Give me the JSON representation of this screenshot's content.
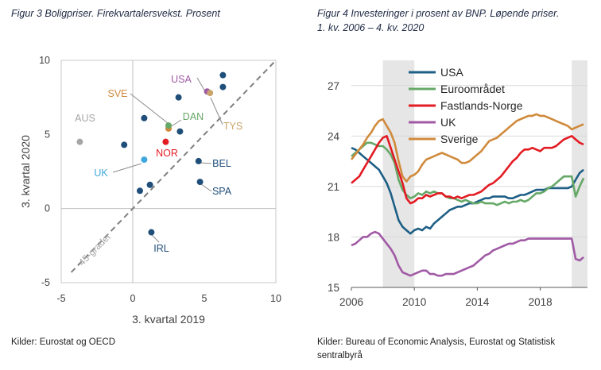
{
  "figure3": {
    "title": "Figur 3 Boligpriser. Firekvartalersvekst. Prosent",
    "source": "Kilder: Eurostat og OECD"
  },
  "figure4": {
    "title": "Figur 4 Investeringer i prosent av BNP. Løpende priser.\n1. kv. 2006 – 4. kv. 2020",
    "source": "Kilder: Bureau of Economic Analysis, Eurostat og Statistisk\nsentralbyrå"
  },
  "colors": {
    "navy": "#1f4e79",
    "red": "#e31b23",
    "purple": "#a05aa5",
    "orange": "#d08a3c",
    "green": "#66a868",
    "teal": "#1e5f86",
    "lightblue": "#3fa7dc",
    "gray": "#a6a6a6",
    "tan": "#c9a46a",
    "band": "#e6e6e6"
  },
  "chart_data": [
    {
      "type": "scatter",
      "title": "Figur 3 Boligpriser. Firekvartalersvekst. Prosent",
      "xlabel": "3. kvartal 2019",
      "ylabel": "3. kvartal 2020",
      "xlim": [
        -5,
        10
      ],
      "ylim": [
        -5,
        10
      ],
      "xticks": [
        -5,
        0,
        5,
        10
      ],
      "yticks": [
        -5,
        0,
        5,
        10
      ],
      "diagonal_label": "45-grader",
      "points": [
        {
          "label": "USA",
          "x": 5.2,
          "y": 7.9,
          "color": "purple"
        },
        {
          "label": "SVE",
          "x": 2.5,
          "y": 5.4,
          "color": "orange"
        },
        {
          "label": "DAN",
          "x": 2.5,
          "y": 5.6,
          "color": "green"
        },
        {
          "label": "TYS",
          "x": 5.4,
          "y": 7.8,
          "color": "tan"
        },
        {
          "label": "AUS",
          "x": -3.7,
          "y": 4.5,
          "color": "gray"
        },
        {
          "label": "NOR",
          "x": 2.3,
          "y": 4.5,
          "color": "red"
        },
        {
          "label": "UK",
          "x": 0.8,
          "y": 3.3,
          "color": "lightblue"
        },
        {
          "label": "BEL",
          "x": 4.6,
          "y": 3.2,
          "color": "navy"
        },
        {
          "label": "SPA",
          "x": 4.7,
          "y": 1.8,
          "color": "navy"
        },
        {
          "label": "IRL",
          "x": 1.3,
          "y": -1.6,
          "color": "navy"
        },
        {
          "label": "",
          "x": 6.3,
          "y": 9.0,
          "color": "navy"
        },
        {
          "label": "",
          "x": 6.3,
          "y": 8.2,
          "color": "navy"
        },
        {
          "label": "",
          "x": 3.2,
          "y": 7.5,
          "color": "navy"
        },
        {
          "label": "",
          "x": 0.8,
          "y": 6.1,
          "color": "navy"
        },
        {
          "label": "",
          "x": 3.3,
          "y": 5.2,
          "color": "navy"
        },
        {
          "label": "",
          "x": -0.6,
          "y": 4.3,
          "color": "navy"
        },
        {
          "label": "",
          "x": 1.2,
          "y": 1.6,
          "color": "navy"
        },
        {
          "label": "",
          "x": 0.5,
          "y": 1.2,
          "color": "navy"
        }
      ],
      "annotations": [
        {
          "label": "USA",
          "dx": 1,
          "dy": 1
        },
        {
          "label": "SVE",
          "dx": 1,
          "dy": 1
        },
        {
          "label": "DAN",
          "dx": 1,
          "dy": 1
        },
        {
          "label": "TYS",
          "dx": 1,
          "dy": 1
        },
        {
          "label": "AUS",
          "dx": 1,
          "dy": 1
        },
        {
          "label": "UK",
          "dx": 1,
          "dy": 1
        },
        {
          "label": "BEL",
          "dx": 1,
          "dy": 1
        },
        {
          "label": "SPA",
          "dx": 1,
          "dy": 1
        },
        {
          "label": "IRL",
          "dx": 1,
          "dy": 1
        }
      ]
    },
    {
      "type": "line",
      "title": "Figur 4 Investeringer i prosent av BNP. Løpende priser. 1. kv. 2006 – 4. kv. 2020",
      "xlim": [
        2006,
        2021
      ],
      "ylim": [
        15,
        28.5
      ],
      "xticks": [
        2006,
        2010,
        2014,
        2018
      ],
      "yticks": [
        15,
        18,
        21,
        24,
        27
      ],
      "shaded_periods": [
        [
          2008,
          2010
        ],
        [
          2020,
          2021
        ]
      ],
      "x": [
        2006.0,
        2006.25,
        2006.5,
        2006.75,
        2007.0,
        2007.25,
        2007.5,
        2007.75,
        2008.0,
        2008.25,
        2008.5,
        2008.75,
        2009.0,
        2009.25,
        2009.5,
        2009.75,
        2010.0,
        2010.25,
        2010.5,
        2010.75,
        2011.0,
        2011.25,
        2011.5,
        2011.75,
        2012.0,
        2012.25,
        2012.5,
        2012.75,
        2013.0,
        2013.25,
        2013.5,
        2013.75,
        2014.0,
        2014.25,
        2014.5,
        2014.75,
        2015.0,
        2015.25,
        2015.5,
        2015.75,
        2016.0,
        2016.25,
        2016.5,
        2016.75,
        2017.0,
        2017.25,
        2017.5,
        2017.75,
        2018.0,
        2018.25,
        2018.5,
        2018.75,
        2019.0,
        2019.25,
        2019.5,
        2019.75,
        2020.0,
        2020.25,
        2020.5,
        2020.75
      ],
      "series": [
        {
          "name": "USA",
          "color": "teal",
          "values": [
            23.3,
            23.2,
            23.0,
            22.8,
            22.6,
            22.4,
            22.2,
            22.0,
            21.6,
            21.2,
            20.6,
            19.8,
            19.0,
            18.6,
            18.4,
            18.2,
            18.4,
            18.5,
            18.4,
            18.6,
            18.5,
            18.8,
            19.0,
            19.2,
            19.4,
            19.6,
            19.7,
            19.8,
            19.8,
            19.9,
            20.0,
            20.0,
            20.1,
            20.2,
            20.3,
            20.3,
            20.4,
            20.4,
            20.4,
            20.4,
            20.3,
            20.3,
            20.4,
            20.5,
            20.5,
            20.6,
            20.7,
            20.8,
            20.8,
            20.8,
            20.9,
            20.9,
            20.9,
            20.9,
            20.9,
            20.9,
            21.0,
            21.4,
            21.8,
            22.0
          ]
        },
        {
          "name": "Euroområdet",
          "color": "green",
          "values": [
            22.8,
            23.0,
            23.2,
            23.4,
            23.6,
            23.6,
            23.5,
            23.4,
            23.4,
            23.2,
            22.9,
            22.4,
            21.4,
            20.8,
            20.5,
            20.3,
            20.4,
            20.6,
            20.5,
            20.7,
            20.6,
            20.7,
            20.6,
            20.6,
            20.4,
            20.3,
            20.3,
            20.2,
            20.1,
            20.2,
            20.1,
            20.0,
            20.0,
            20.1,
            20.0,
            20.0,
            20.0,
            19.9,
            20.0,
            20.1,
            20.0,
            20.1,
            20.1,
            20.2,
            20.1,
            20.2,
            20.4,
            20.6,
            20.6,
            20.7,
            20.9,
            21.0,
            21.2,
            21.4,
            21.6,
            21.6,
            21.6,
            20.4,
            21.0,
            21.5
          ]
        },
        {
          "name": "Fastlands-Norge",
          "color": "red",
          "values": [
            21.2,
            21.4,
            21.6,
            22.0,
            22.4,
            22.8,
            23.2,
            23.6,
            23.9,
            24.0,
            23.3,
            22.6,
            21.9,
            21.2,
            20.3,
            20.0,
            20.1,
            20.3,
            20.3,
            20.5,
            20.4,
            20.5,
            20.6,
            20.6,
            20.4,
            20.4,
            20.3,
            20.4,
            20.3,
            20.4,
            20.5,
            20.5,
            20.6,
            20.7,
            20.9,
            21.1,
            21.2,
            21.4,
            21.6,
            21.9,
            22.2,
            22.5,
            22.7,
            23.0,
            23.2,
            23.2,
            23.3,
            23.2,
            23.1,
            23.3,
            23.3,
            23.3,
            23.4,
            23.6,
            23.8,
            23.9,
            24.0,
            23.8,
            23.6,
            23.5
          ]
        },
        {
          "name": "UK",
          "color": "purple",
          "values": [
            17.5,
            17.6,
            17.8,
            18.0,
            18.0,
            18.2,
            18.3,
            18.2,
            17.9,
            17.6,
            17.3,
            16.9,
            16.3,
            15.9,
            15.8,
            15.7,
            15.8,
            15.9,
            16.0,
            16.0,
            15.8,
            15.8,
            15.7,
            15.7,
            15.8,
            15.8,
            15.8,
            15.9,
            16.0,
            16.1,
            16.2,
            16.3,
            16.5,
            16.7,
            16.9,
            17.0,
            17.2,
            17.3,
            17.4,
            17.5,
            17.6,
            17.6,
            17.7,
            17.8,
            17.8,
            17.9,
            17.9,
            17.9,
            17.9,
            17.9,
            17.9,
            17.9,
            17.9,
            17.9,
            17.9,
            17.9,
            17.9,
            16.7,
            16.6,
            16.8
          ]
        },
        {
          "name": "Sverige",
          "color": "orange",
          "values": [
            22.6,
            22.9,
            23.2,
            23.5,
            23.9,
            24.2,
            24.6,
            24.9,
            25.0,
            24.6,
            24.2,
            23.6,
            22.5,
            21.6,
            21.3,
            21.6,
            21.7,
            21.9,
            22.3,
            22.6,
            22.7,
            22.8,
            22.9,
            23.0,
            22.9,
            22.8,
            22.7,
            22.6,
            22.4,
            22.4,
            22.5,
            22.7,
            22.9,
            23.1,
            23.4,
            23.7,
            23.8,
            23.9,
            24.1,
            24.3,
            24.5,
            24.7,
            24.9,
            25.0,
            25.1,
            25.2,
            25.2,
            25.3,
            25.2,
            25.2,
            25.1,
            25.0,
            24.9,
            24.8,
            24.7,
            24.6,
            24.4,
            24.5,
            24.6,
            24.7
          ]
        }
      ]
    }
  ]
}
